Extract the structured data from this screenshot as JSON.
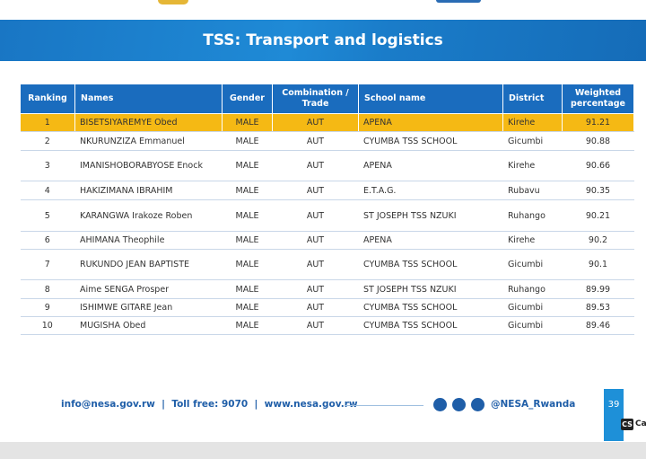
{
  "header": {
    "title": "TSS: Transport and logistics"
  },
  "table": {
    "columns": [
      "Ranking",
      "Names",
      "Gender",
      "Combination / Trade",
      "School name",
      "District",
      "Weighted percentage"
    ],
    "rows": [
      [
        "1",
        "BISETSIYAREMYE Obed",
        "MALE",
        "AUT",
        "APENA",
        "Kirehe",
        "91.21"
      ],
      [
        "2",
        "NKURUNZIZA Emmanuel",
        "MALE",
        "AUT",
        "CYUMBA TSS SCHOOL",
        "Gicumbi",
        "90.88"
      ],
      [
        "3",
        "IMANISHOBORABYOSE Enock",
        "MALE",
        "AUT",
        "APENA",
        "Kirehe",
        "90.66"
      ],
      [
        "4",
        "HAKIZIMANA IBRAHIM",
        "MALE",
        "AUT",
        "E.T.A.G.",
        "Rubavu",
        "90.35"
      ],
      [
        "5",
        "KARANGWA Irakoze Roben",
        "MALE",
        "AUT",
        "ST JOSEPH TSS NZUKI",
        "Ruhango",
        "90.21"
      ],
      [
        "6",
        "AHIMANA Theophile",
        "MALE",
        "AUT",
        "APENA",
        "Kirehe",
        "90.2"
      ],
      [
        "7",
        "RUKUNDO JEAN BAPTISTE",
        "MALE",
        "AUT",
        "CYUMBA TSS SCHOOL",
        "Gicumbi",
        "90.1"
      ],
      [
        "8",
        "Aime SENGA Prosper",
        "MALE",
        "AUT",
        "ST JOSEPH TSS NZUKI",
        "Ruhango",
        "89.99"
      ],
      [
        "9",
        "ISHIMWE GITARE Jean",
        "MALE",
        "AUT",
        "CYUMBA TSS SCHOOL",
        "Gicumbi",
        "89.53"
      ],
      [
        "10",
        "MUGISHA Obed",
        "MALE",
        "AUT",
        "CYUMBA TSS SCHOOL",
        "Gicumbi",
        "89.46"
      ]
    ]
  },
  "footer": {
    "contact": "info@nesa.gov.rw  |  Toll free: 9070  |  www.nesa.gov.rw",
    "handle": "@NESA_Rwanda",
    "page": "39"
  },
  "watermark": {
    "badge": "CS",
    "text": "Ca"
  }
}
